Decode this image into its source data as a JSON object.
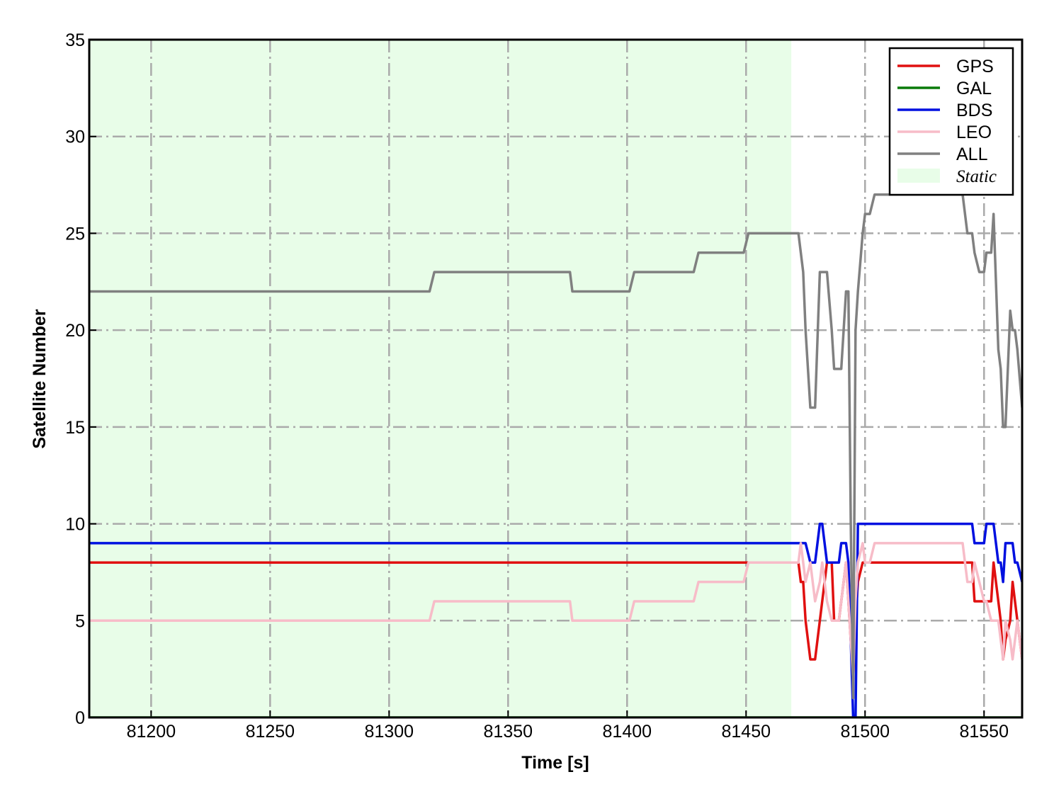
{
  "chart_data": {
    "type": "line",
    "xlabel": "Time [s]",
    "ylabel": "Satellite Number",
    "x": [
      81174,
      81317,
      81319,
      81376,
      81377,
      81401,
      81403,
      81428,
      81430,
      81449,
      81451,
      81469,
      81472,
      81473,
      81474,
      81475,
      81477,
      81479,
      81481,
      81482,
      81484,
      81486,
      81487,
      81489,
      81490,
      81492,
      81493,
      81494,
      81495,
      81496,
      81497,
      81499,
      81500,
      81502,
      81504,
      81541,
      81543,
      81545,
      81546,
      81548,
      81550,
      81551,
      81553,
      81554,
      81556,
      81557,
      81558,
      81559,
      81561,
      81562,
      81563,
      81564,
      81566
    ],
    "series": [
      {
        "name": "GPS",
        "color": "#e01010",
        "values": [
          8,
          8,
          8,
          8,
          8,
          8,
          8,
          8,
          8,
          8,
          8,
          8,
          8,
          7,
          7,
          5,
          3,
          3,
          5,
          6,
          8,
          8,
          5,
          5,
          6,
          8,
          6,
          4,
          2,
          5,
          7,
          8,
          8,
          8,
          8,
          8,
          8,
          8,
          6,
          6,
          6,
          6,
          6,
          8,
          6,
          5,
          3,
          4,
          5,
          7,
          6,
          5,
          3
        ]
      },
      {
        "name": "GAL",
        "color": "#0a7a0a",
        "values": [
          0,
          0,
          0,
          0,
          0,
          0,
          0,
          0,
          0,
          0,
          0,
          0,
          0,
          0,
          0,
          0,
          0,
          0,
          0,
          0,
          0,
          0,
          0,
          0,
          0,
          0,
          0,
          0,
          0,
          0,
          0,
          0,
          0,
          0,
          0,
          0,
          0,
          0,
          0,
          0,
          0,
          0,
          0,
          0,
          0,
          0,
          0,
          0,
          0,
          0,
          0,
          0,
          0
        ]
      },
      {
        "name": "BDS",
        "color": "#0010e0",
        "values": [
          9,
          9,
          9,
          9,
          9,
          9,
          9,
          9,
          9,
          9,
          9,
          9,
          9,
          9,
          9,
          9,
          8,
          8,
          10,
          10,
          8,
          8,
          8,
          8,
          9,
          9,
          8,
          4,
          0,
          0,
          10,
          10,
          10,
          10,
          10,
          10,
          10,
          10,
          9,
          9,
          9,
          10,
          10,
          10,
          8,
          8,
          7,
          9,
          9,
          9,
          8,
          8,
          7
        ]
      },
      {
        "name": "LEO",
        "color": "#f7bcc8",
        "values": [
          5,
          5,
          6,
          6,
          5,
          5,
          6,
          6,
          7,
          7,
          8,
          8,
          8,
          9,
          8,
          7,
          8,
          6,
          7,
          8,
          6,
          5,
          5,
          5,
          6,
          8,
          6,
          4,
          2,
          6,
          8,
          9,
          8,
          8,
          9,
          9,
          7,
          7,
          8,
          7,
          6,
          6,
          5,
          5,
          5,
          4,
          3,
          5,
          4,
          3,
          4,
          5,
          3
        ]
      },
      {
        "name": "ALL",
        "color": "#808080",
        "values": [
          22,
          22,
          23,
          23,
          22,
          22,
          23,
          23,
          24,
          24,
          25,
          25,
          25,
          24,
          23,
          20,
          16,
          16,
          23,
          23,
          23,
          20,
          18,
          18,
          18,
          22,
          22,
          10,
          1,
          20,
          22,
          25,
          26,
          26,
          27,
          27,
          25,
          25,
          24,
          23,
          23,
          24,
          24,
          26,
          19,
          18,
          15,
          15,
          21,
          20,
          20,
          19,
          16
        ]
      }
    ],
    "span": {
      "label": "Static",
      "x": [
        81174,
        81469
      ],
      "color": "#e8fde8"
    },
    "xlim": [
      81174,
      81566
    ],
    "ylim": [
      0,
      35
    ],
    "xticks": [
      81200,
      81250,
      81300,
      81350,
      81400,
      81450,
      81500,
      81550
    ],
    "yticks": [
      0,
      5,
      10,
      15,
      20,
      25,
      30,
      35
    ],
    "grid": true,
    "legend": "upper right"
  }
}
